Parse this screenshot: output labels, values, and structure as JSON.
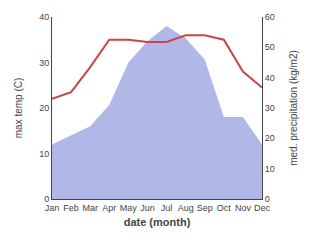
{
  "chart_data": {
    "type": "line",
    "xlabel": "date (month)",
    "ylabel": "max temp (C)",
    "y2label": "med. precipitation (kg/m2)",
    "categories": [
      "Jan",
      "Feb",
      "Mar",
      "Apr",
      "May",
      "Jun",
      "Jul",
      "Aug",
      "Sep",
      "Oct",
      "Nov",
      "Dec"
    ],
    "series": [
      {
        "type": "area",
        "axis": "y2",
        "color": "#b0b8e8",
        "values": [
          18,
          21,
          24,
          31,
          45,
          52,
          57,
          53,
          46,
          27,
          27,
          18
        ]
      },
      {
        "type": "line",
        "color": "#cc4444",
        "values": [
          22,
          23.5,
          29,
          35,
          35,
          34.5,
          34.5,
          36,
          36,
          35,
          28,
          24.5
        ]
      }
    ],
    "ylim": [
      0,
      40
    ],
    "yticks": [
      0,
      10,
      20,
      30,
      40
    ],
    "y2lim": [
      0,
      60
    ],
    "y2ticks": [
      0,
      10,
      20,
      30,
      40,
      50,
      60
    ],
    "grid": false
  }
}
